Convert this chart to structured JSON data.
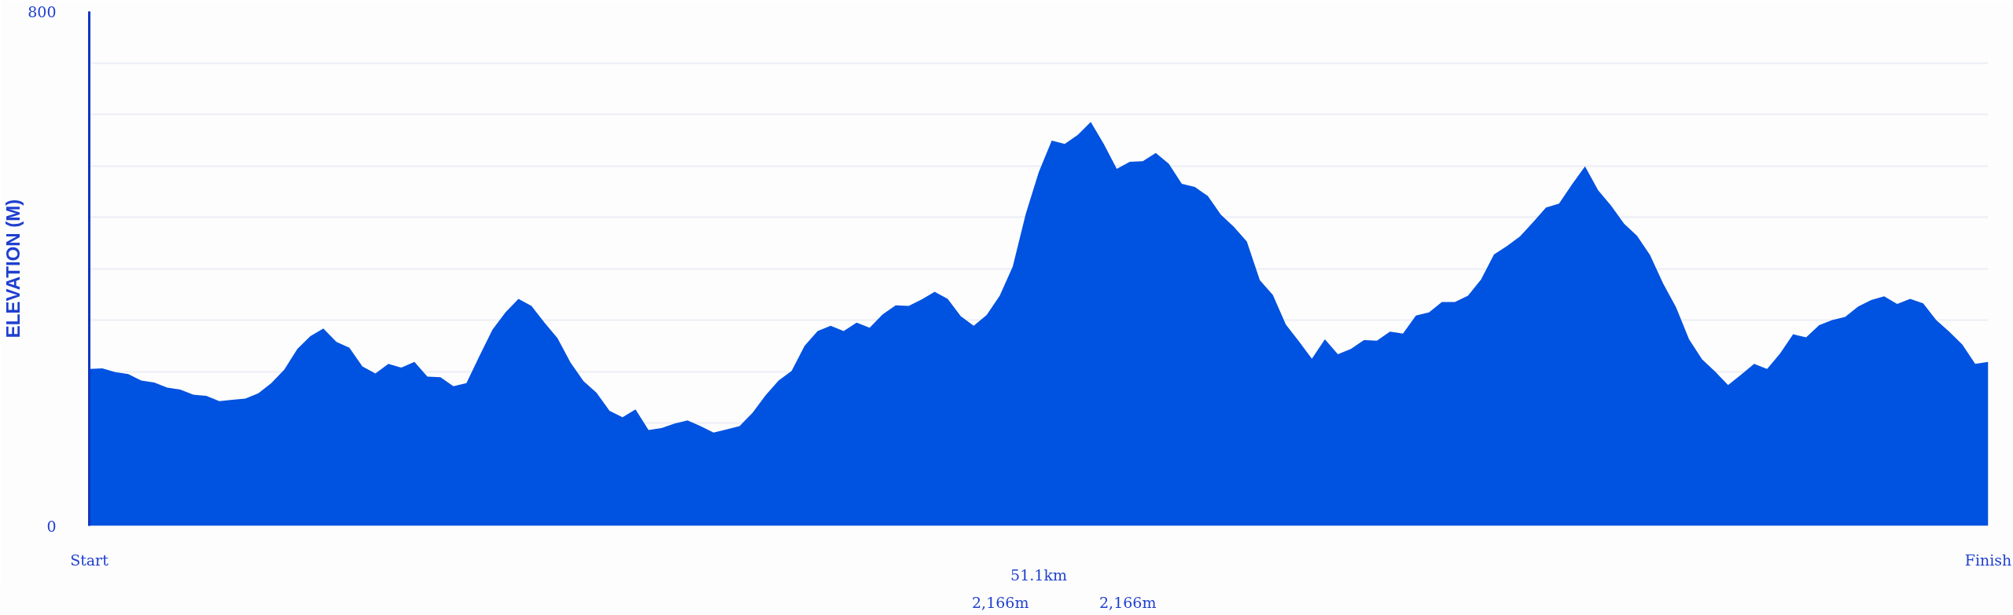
{
  "chart_data": {
    "type": "area",
    "xlabel": "51.1km",
    "ylabel": "ELEVATION (M)",
    "annotations": [
      "2,166m",
      "2,166m"
    ],
    "categories": [
      "Start",
      null,
      null,
      null,
      null,
      null,
      null,
      null,
      null,
      null,
      null,
      null,
      null,
      null,
      null,
      null,
      null,
      null,
      null,
      null,
      null,
      null,
      null,
      null,
      null,
      null,
      null,
      null,
      null,
      null,
      null,
      null,
      null,
      null,
      null,
      null,
      null,
      null,
      null,
      null,
      null,
      null,
      null,
      null,
      null,
      null,
      null,
      null,
      null,
      null,
      null,
      null,
      null,
      null,
      null,
      null,
      null,
      null,
      null,
      null,
      null,
      null,
      null,
      null,
      null,
      null,
      null,
      null,
      null,
      null,
      null,
      null,
      null,
      null,
      null,
      null,
      null,
      null,
      null,
      null,
      null,
      null,
      null,
      null,
      null,
      null,
      null,
      null,
      null,
      null,
      null,
      null,
      null,
      null,
      null,
      null,
      null,
      null,
      null,
      null,
      null,
      null,
      null,
      null,
      null,
      null,
      null,
      null,
      null,
      null,
      null,
      null,
      null,
      null,
      null,
      null,
      null,
      null,
      null,
      null,
      null,
      null,
      null,
      null,
      null,
      null,
      null,
      null,
      null,
      null,
      null,
      null,
      null,
      null,
      null,
      null,
      null,
      null,
      null,
      null,
      null,
      null,
      null,
      null,
      null,
      null,
      "Finish"
    ],
    "series": [
      {
        "color": "#0052e0",
        "values": [
          244,
          245,
          239,
          236,
          226,
          223,
          215,
          212,
          204,
          202,
          194,
          196,
          198,
          206,
          222,
          243,
          275,
          295,
          307,
          286,
          277,
          248,
          237,
          252,
          246,
          255,
          232,
          231,
          217,
          222,
          264,
          305,
          332,
          353,
          342,
          316,
          292,
          254,
          225,
          207,
          179,
          169,
          181,
          149,
          152,
          159,
          164,
          155,
          145,
          150,
          155,
          176,
          203,
          226,
          241,
          280,
          303,
          311,
          303,
          316,
          308,
          329,
          343,
          342,
          352,
          364,
          353,
          326,
          311,
          328,
          358,
          403,
          485,
          550,
          599,
          594,
          608,
          628,
          594,
          555,
          566,
          567,
          580,
          563,
          532,
          527,
          513,
          484,
          465,
          442,
          382,
          359,
          313,
          287,
          260,
          290,
          267,
          275,
          289,
          288,
          302,
          299,
          327,
          332,
          348,
          348,
          358,
          383,
          422,
          435,
          450,
          472,
          495,
          501,
          531,
          559,
          522,
          498,
          470,
          451,
          421,
          377,
          340,
          290,
          259,
          240,
          219,
          235,
          252,
          244,
          268,
          298,
          293,
          312,
          320,
          325,
          341,
          351,
          357,
          345,
          353,
          346,
          320,
          302,
          282,
          252,
          255
        ]
      }
    ],
    "ylim": [
      0,
      800
    ],
    "yticks": [
      0,
      {
        "value": 80,
        "label": null
      },
      {
        "value": 160,
        "label": null
      },
      {
        "value": 240,
        "label": null
      },
      {
        "value": 320,
        "label": null
      },
      {
        "value": 400,
        "label": null
      },
      {
        "value": 480,
        "label": null
      },
      {
        "value": 560,
        "label": null
      },
      {
        "value": 640,
        "label": null
      },
      {
        "value": 720,
        "label": null
      },
      800
    ],
    "grid": "y"
  }
}
